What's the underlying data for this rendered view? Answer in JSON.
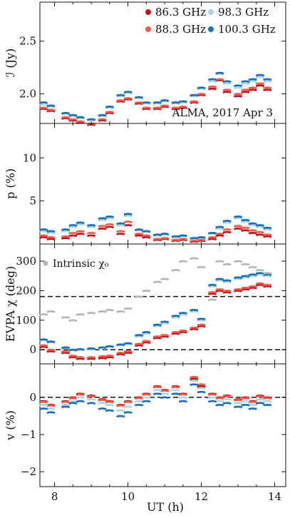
{
  "figure": {
    "annotation": "ALMA, 2017 Apr 3",
    "xlabel": "UT (h)",
    "legend": [
      {
        "label": "86.3 GHz",
        "color": "#c0141c"
      },
      {
        "label": "98.3 GHz",
        "color": "#a9d6e5"
      },
      {
        "label": "88.3 GHz",
        "color": "#f15a46"
      },
      {
        "label": "100.3 GHz",
        "color": "#1f6fb2"
      }
    ],
    "intrinsic_label": "Intrinsic χ₀",
    "intrinsic_color": "#b5b5b5"
  },
  "chart_data": [
    {
      "type": "scatter",
      "ylabel": "ℐ (Jy)",
      "xlim": [
        7.6,
        14.3
      ],
      "ylim": [
        1.72,
        2.87
      ],
      "xticks": [
        8,
        10,
        12,
        14
      ],
      "yticks": [
        2.0,
        2.5
      ],
      "ytick_labels": [
        "2.0",
        "2.5"
      ],
      "series": [
        {
          "name": "86.3 GHz",
          "x": [
            7.7,
            7.9,
            8.3,
            8.5,
            8.7,
            9.0,
            9.3,
            9.5,
            9.8,
            10.0,
            10.3,
            10.5,
            10.8,
            11.0,
            11.3,
            11.5,
            11.8,
            12.0,
            12.3,
            12.5,
            12.7,
            13.0,
            13.2,
            13.4,
            13.6,
            13.8
          ],
          "values": [
            1.86,
            1.84,
            1.77,
            1.75,
            1.73,
            1.71,
            1.75,
            1.82,
            1.93,
            1.95,
            1.91,
            1.86,
            1.86,
            1.88,
            1.86,
            1.87,
            1.92,
            1.99,
            2.05,
            2.13,
            2.02,
            1.98,
            2.02,
            2.04,
            2.08,
            2.04
          ]
        },
        {
          "name": "88.3 GHz",
          "x": [
            7.7,
            7.9,
            8.3,
            8.5,
            8.7,
            9.0,
            9.3,
            9.5,
            9.8,
            10.0,
            10.3,
            10.5,
            10.8,
            11.0,
            11.3,
            11.5,
            11.8,
            12.0,
            12.3,
            12.5,
            12.7,
            13.0,
            13.2,
            13.4,
            13.6,
            13.8
          ],
          "values": [
            1.87,
            1.85,
            1.78,
            1.76,
            1.74,
            1.72,
            1.76,
            1.83,
            1.94,
            1.96,
            1.92,
            1.87,
            1.87,
            1.89,
            1.87,
            1.88,
            1.93,
            2.0,
            2.07,
            2.14,
            2.04,
            2.0,
            2.04,
            2.06,
            2.1,
            2.06
          ]
        },
        {
          "name": "98.3 GHz",
          "x": [
            7.7,
            7.9,
            8.3,
            8.5,
            8.7,
            9.0,
            9.3,
            9.5,
            9.8,
            10.0,
            10.3,
            10.5,
            10.8,
            11.0,
            11.3,
            11.5,
            11.8,
            12.0,
            12.3,
            12.5,
            12.7,
            13.0,
            13.2,
            13.4,
            13.6,
            13.8
          ],
          "values": [
            1.9,
            1.88,
            1.81,
            1.79,
            1.77,
            1.75,
            1.79,
            1.87,
            1.98,
            2.01,
            1.96,
            1.91,
            1.91,
            1.93,
            1.91,
            1.92,
            1.98,
            2.05,
            2.12,
            2.19,
            2.1,
            2.06,
            2.1,
            2.12,
            2.16,
            2.12
          ]
        },
        {
          "name": "100.3 GHz",
          "x": [
            7.7,
            7.9,
            8.3,
            8.5,
            8.7,
            9.0,
            9.3,
            9.5,
            9.8,
            10.0,
            10.3,
            10.5,
            10.8,
            11.0,
            11.3,
            11.5,
            11.8,
            12.0,
            12.3,
            12.5,
            12.7,
            13.0,
            13.2,
            13.4,
            13.6,
            13.8
          ],
          "values": [
            1.92,
            1.89,
            1.82,
            1.8,
            1.78,
            1.76,
            1.8,
            1.88,
            1.99,
            2.02,
            1.97,
            1.92,
            1.92,
            1.94,
            1.92,
            1.93,
            1.99,
            2.06,
            2.14,
            2.2,
            2.12,
            2.08,
            2.12,
            2.14,
            2.18,
            2.14
          ]
        }
      ]
    },
    {
      "type": "scatter",
      "ylabel": "p (%)",
      "xlim": [
        7.6,
        14.3
      ],
      "ylim": [
        0,
        14
      ],
      "yticks": [
        5,
        10
      ],
      "ytick_labels": [
        "5",
        "10"
      ],
      "series": [
        {
          "name": "86.3 GHz",
          "x": [
            7.7,
            7.9,
            8.3,
            8.5,
            8.7,
            9.0,
            9.3,
            9.5,
            9.8,
            10.0,
            10.3,
            10.5,
            10.8,
            11.0,
            11.3,
            11.5,
            11.8,
            12.0,
            12.3,
            12.5,
            12.7,
            13.0,
            13.2,
            13.4,
            13.6,
            13.8
          ],
          "values": [
            0.8,
            0.6,
            0.7,
            1.0,
            1.2,
            1.0,
            1.8,
            2.0,
            1.2,
            2.2,
            1.0,
            0.8,
            0.5,
            0.6,
            0.4,
            0.5,
            0.3,
            0.4,
            0.6,
            1.0,
            1.4,
            1.8,
            1.6,
            1.3,
            1.1,
            0.9
          ]
        },
        {
          "name": "88.3 GHz",
          "x": [
            7.7,
            7.9,
            8.3,
            8.5,
            8.7,
            9.0,
            9.3,
            9.5,
            9.8,
            10.0,
            10.3,
            10.5,
            10.8,
            11.0,
            11.3,
            11.5,
            11.8,
            12.0,
            12.3,
            12.5,
            12.7,
            13.0,
            13.2,
            13.4,
            13.6,
            13.8
          ],
          "values": [
            1.0,
            0.8,
            0.9,
            1.3,
            1.5,
            1.3,
            2.1,
            2.3,
            1.5,
            2.6,
            1.2,
            1.0,
            0.6,
            0.7,
            0.5,
            0.6,
            0.4,
            0.5,
            0.8,
            1.2,
            1.7,
            2.1,
            1.9,
            1.6,
            1.4,
            1.1
          ]
        },
        {
          "name": "98.3 GHz",
          "x": [
            7.7,
            7.9,
            8.3,
            8.5,
            8.7,
            9.0,
            9.3,
            9.5,
            9.8,
            10.0,
            10.3,
            10.5,
            10.8,
            11.0,
            11.3,
            11.5,
            11.8,
            12.0,
            12.3,
            12.5,
            12.7,
            13.0,
            13.2,
            13.4,
            13.6,
            13.8
          ],
          "values": [
            1.5,
            1.3,
            1.5,
            2.0,
            2.3,
            2.0,
            2.8,
            3.0,
            2.2,
            3.3,
            1.6,
            1.4,
            1.0,
            1.1,
            0.8,
            0.9,
            0.6,
            0.7,
            1.2,
            1.8,
            2.5,
            3.0,
            2.6,
            2.2,
            2.0,
            1.7
          ]
        },
        {
          "name": "100.3 GHz",
          "x": [
            7.7,
            7.9,
            8.3,
            8.5,
            8.7,
            9.0,
            9.3,
            9.5,
            9.8,
            10.0,
            10.3,
            10.5,
            10.8,
            11.0,
            11.3,
            11.5,
            11.8,
            12.0,
            12.3,
            12.5,
            12.7,
            13.0,
            13.2,
            13.4,
            13.6,
            13.8
          ],
          "values": [
            1.7,
            1.5,
            1.7,
            2.2,
            2.5,
            2.2,
            3.0,
            3.2,
            2.4,
            3.5,
            1.7,
            1.5,
            1.1,
            1.2,
            0.9,
            1.0,
            0.7,
            0.8,
            1.3,
            2.0,
            2.7,
            3.2,
            2.8,
            2.4,
            2.2,
            1.9
          ]
        }
      ]
    },
    {
      "type": "scatter",
      "ylabel": "EVPA χ (deg)",
      "xlim": [
        7.6,
        14.3
      ],
      "ylim": [
        -48,
        358
      ],
      "yticks": [
        0,
        100,
        200,
        300
      ],
      "ytick_labels": [
        "0",
        "100",
        "200",
        "300"
      ],
      "hlines": [
        0,
        180
      ],
      "series": [
        {
          "name": "86.3 GHz",
          "x": [
            7.7,
            7.9,
            8.3,
            8.5,
            8.7,
            9.0,
            9.3,
            9.5,
            9.8,
            10.0,
            10.3,
            10.5,
            10.8,
            11.0,
            11.3,
            11.5,
            11.8,
            12.0,
            12.3,
            12.5,
            12.7,
            13.0,
            13.2,
            13.4,
            13.6,
            13.8
          ],
          "values": [
            10,
            -5,
            -10,
            -25,
            -30,
            -30,
            -28,
            -25,
            -15,
            -10,
            15,
            25,
            40,
            45,
            55,
            60,
            70,
            80,
            190,
            200,
            195,
            200,
            205,
            210,
            220,
            215
          ]
        },
        {
          "name": "88.3 GHz",
          "x": [
            7.7,
            7.9,
            8.3,
            8.5,
            8.7,
            9.0,
            9.3,
            9.5,
            9.8,
            10.0,
            10.3,
            10.5,
            10.8,
            11.0,
            11.3,
            11.5,
            11.8,
            12.0,
            12.3,
            12.5,
            12.7,
            13.0,
            13.2,
            13.4,
            13.6,
            13.8
          ],
          "values": [
            15,
            0,
            -5,
            -20,
            -25,
            -25,
            -22,
            -20,
            -10,
            -5,
            20,
            30,
            45,
            50,
            60,
            65,
            75,
            85,
            195,
            205,
            200,
            205,
            210,
            215,
            225,
            220
          ]
        },
        {
          "name": "98.3 GHz",
          "x": [
            7.7,
            7.9,
            8.3,
            8.5,
            8.7,
            9.0,
            9.3,
            9.5,
            9.8,
            10.0,
            10.3,
            10.5,
            10.8,
            11.0,
            11.3,
            11.5,
            11.8,
            12.0,
            12.3,
            12.5,
            12.7,
            13.0,
            13.2,
            13.4,
            13.6,
            13.8
          ],
          "values": [
            32,
            25,
            5,
            -2,
            0,
            2,
            5,
            10,
            15,
            20,
            45,
            55,
            80,
            90,
            110,
            120,
            130,
            100,
            215,
            235,
            230,
            240,
            245,
            250,
            255,
            250
          ]
        },
        {
          "name": "100.3 GHz",
          "x": [
            7.7,
            7.9,
            8.3,
            8.5,
            8.7,
            9.0,
            9.3,
            9.5,
            9.8,
            10.0,
            10.3,
            10.5,
            10.8,
            11.0,
            11.3,
            11.5,
            11.8,
            12.0,
            12.3,
            12.5,
            12.7,
            13.0,
            13.2,
            13.4,
            13.6,
            13.8
          ],
          "values": [
            35,
            28,
            8,
            0,
            2,
            5,
            8,
            12,
            18,
            22,
            50,
            60,
            85,
            95,
            115,
            125,
            135,
            105,
            220,
            240,
            235,
            245,
            250,
            255,
            260,
            255
          ]
        },
        {
          "name": "Intrinsic χ₀",
          "x": [
            7.7,
            7.9,
            8.3,
            8.5,
            8.7,
            9.0,
            9.3,
            9.5,
            9.8,
            10.0,
            10.3,
            10.5,
            10.8,
            11.0,
            11.3,
            11.5,
            11.8,
            12.0,
            12.3,
            12.5,
            12.7,
            13.0,
            13.2,
            13.4,
            13.6,
            13.8
          ],
          "values": [
            120,
            130,
            110,
            100,
            120,
            125,
            130,
            135,
            130,
            140,
            180,
            200,
            230,
            240,
            270,
            300,
            310,
            280,
            170,
            300,
            290,
            300,
            290,
            280,
            270,
            260
          ]
        }
      ]
    },
    {
      "type": "scatter",
      "ylabel": "v (%)",
      "xlim": [
        7.6,
        14.3
      ],
      "ylim": [
        -2.4,
        0.9
      ],
      "yticks": [
        -2,
        -1,
        0
      ],
      "ytick_labels": [
        "−2",
        "−1",
        "0"
      ],
      "hlines": [
        0
      ],
      "series": [
        {
          "name": "86.3 GHz",
          "x": [
            7.7,
            7.9,
            8.3,
            8.5,
            8.7,
            9.0,
            9.3,
            9.5,
            9.8,
            10.0,
            10.3,
            10.5,
            10.8,
            11.0,
            11.3,
            11.5,
            11.8,
            12.0,
            12.3,
            12.5,
            12.7,
            13.0,
            13.2,
            13.4,
            13.6,
            13.8
          ],
          "values": [
            -0.1,
            -0.2,
            -0.1,
            0.0,
            0.1,
            0.05,
            -0.05,
            -0.1,
            -0.2,
            -0.1,
            0.0,
            0.1,
            0.3,
            0.2,
            0.3,
            0.1,
            0.5,
            0.3,
            0.1,
            0.0,
            0.05,
            -0.05,
            0.0,
            -0.1,
            0.05,
            0.0
          ]
        },
        {
          "name": "88.3 GHz",
          "x": [
            7.7,
            7.9,
            8.3,
            8.5,
            8.7,
            9.0,
            9.3,
            9.5,
            9.8,
            10.0,
            10.3,
            10.5,
            10.8,
            11.0,
            11.3,
            11.5,
            11.8,
            12.0,
            12.3,
            12.5,
            12.7,
            13.0,
            13.2,
            13.4,
            13.6,
            13.8
          ],
          "values": [
            -0.12,
            -0.22,
            -0.12,
            -0.02,
            0.08,
            0.03,
            -0.07,
            -0.12,
            -0.22,
            -0.12,
            -0.02,
            0.08,
            0.28,
            0.18,
            0.28,
            0.08,
            0.55,
            0.35,
            0.08,
            -0.02,
            0.03,
            -0.07,
            -0.02,
            -0.12,
            0.03,
            -0.02
          ]
        },
        {
          "name": "98.3 GHz",
          "x": [
            7.7,
            7.9,
            8.3,
            8.5,
            8.7,
            9.0,
            9.3,
            9.5,
            9.8,
            10.0,
            10.3,
            10.5,
            10.8,
            11.0,
            11.3,
            11.5,
            11.8,
            12.0,
            12.3,
            12.5,
            12.7,
            13.0,
            13.2,
            13.4,
            13.6,
            13.8
          ],
          "values": [
            -0.2,
            -0.3,
            -0.2,
            -0.1,
            0.0,
            -0.05,
            -0.15,
            -0.2,
            -0.35,
            -0.25,
            -0.1,
            0.0,
            0.2,
            0.1,
            0.2,
            0.0,
            0.45,
            0.25,
            0.0,
            -0.1,
            -0.05,
            -0.15,
            -0.1,
            -0.2,
            -0.05,
            -0.1
          ]
        },
        {
          "name": "100.3 GHz",
          "x": [
            7.7,
            7.9,
            8.3,
            8.5,
            8.7,
            9.0,
            9.3,
            9.5,
            9.8,
            10.0,
            10.3,
            10.5,
            10.8,
            11.0,
            11.3,
            11.5,
            11.8,
            12.0,
            12.3,
            12.5,
            12.7,
            13.0,
            13.2,
            13.4,
            13.6,
            13.8
          ],
          "values": [
            -0.3,
            -0.4,
            -0.25,
            -0.15,
            -0.1,
            -0.15,
            -0.3,
            -0.35,
            -0.5,
            -0.4,
            -0.2,
            -0.1,
            0.1,
            0.0,
            0.1,
            -0.1,
            0.35,
            0.15,
            -0.1,
            -0.2,
            -0.15,
            -0.25,
            -0.2,
            -0.3,
            -0.15,
            -0.2
          ]
        }
      ]
    }
  ]
}
